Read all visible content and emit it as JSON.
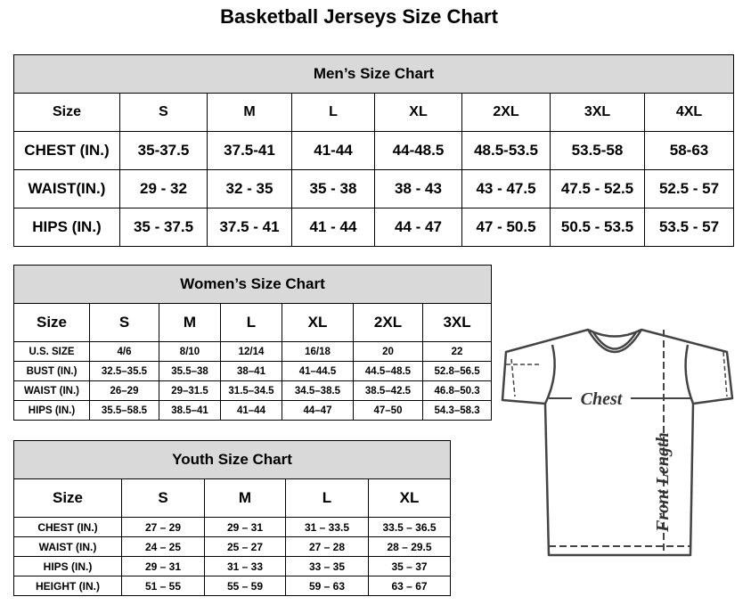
{
  "title": "Basketball Jerseys Size Chart",
  "men": {
    "title": "Men’s Size Chart",
    "header": [
      "Size",
      "S",
      "M",
      "L",
      "XL",
      "2XL",
      "3XL",
      "4XL"
    ],
    "rows": [
      [
        "CHEST (IN.)",
        "35-37.5",
        "37.5-41",
        "41-44",
        "44-48.5",
        "48.5-53.5",
        "53.5-58",
        "58-63"
      ],
      [
        "WAIST(IN.)",
        "29 - 32",
        "32 - 35",
        "35 - 38",
        "38 - 43",
        "43 - 47.5",
        "47.5 - 52.5",
        "52.5 - 57"
      ],
      [
        "HIPS (IN.)",
        "35 - 37.5",
        "37.5 - 41",
        "41 - 44",
        "44 - 47",
        "47 - 50.5",
        "50.5 - 53.5",
        "53.5 - 57"
      ]
    ]
  },
  "women": {
    "title": "Women’s Size Chart",
    "header": [
      "Size",
      "S",
      "M",
      "L",
      "XL",
      "2XL",
      "3XL"
    ],
    "rows": [
      [
        "U.S.  SIZE",
        "4/6",
        "8/10",
        "12/14",
        "16/18",
        "20",
        "22"
      ],
      [
        "BUST  (IN.)",
        "32.5–35.5",
        "35.5–38",
        "38–41",
        "41–44.5",
        "44.5–48.5",
        "52.8–56.5"
      ],
      [
        "WAIST  (IN.)",
        "26–29",
        "29–31.5",
        "31.5–34.5",
        "34.5–38.5",
        "38.5–42.5",
        "46.8–50.3"
      ],
      [
        "HIPS  (IN.)",
        "35.5–58.5",
        "38.5–41",
        "41–44",
        "44–47",
        "47–50",
        "54.3–58.3"
      ]
    ]
  },
  "youth": {
    "title": "Youth Size Chart",
    "header": [
      "Size",
      "S",
      "M",
      "L",
      "XL"
    ],
    "rows": [
      [
        "CHEST  (IN.)",
        "27  –  29",
        "29  –  31",
        "31  –  33.5",
        "33.5  –  36.5"
      ],
      [
        "WAIST  (IN.)",
        "24  –  25",
        "25  –  27",
        "27  –  28",
        "28  –  29.5"
      ],
      [
        "HIPS  (IN.)",
        "29  –  31",
        "31  –  33",
        "33  –  35",
        "35  –  37"
      ],
      [
        "HEIGHT  (IN.)",
        "51  –  55",
        "55  –  59",
        "59  –  63",
        "63  –  67"
      ]
    ]
  },
  "diagram": {
    "chest_label": "Chest",
    "length_label": "Front Length",
    "icon": "t-shirt-icon"
  }
}
